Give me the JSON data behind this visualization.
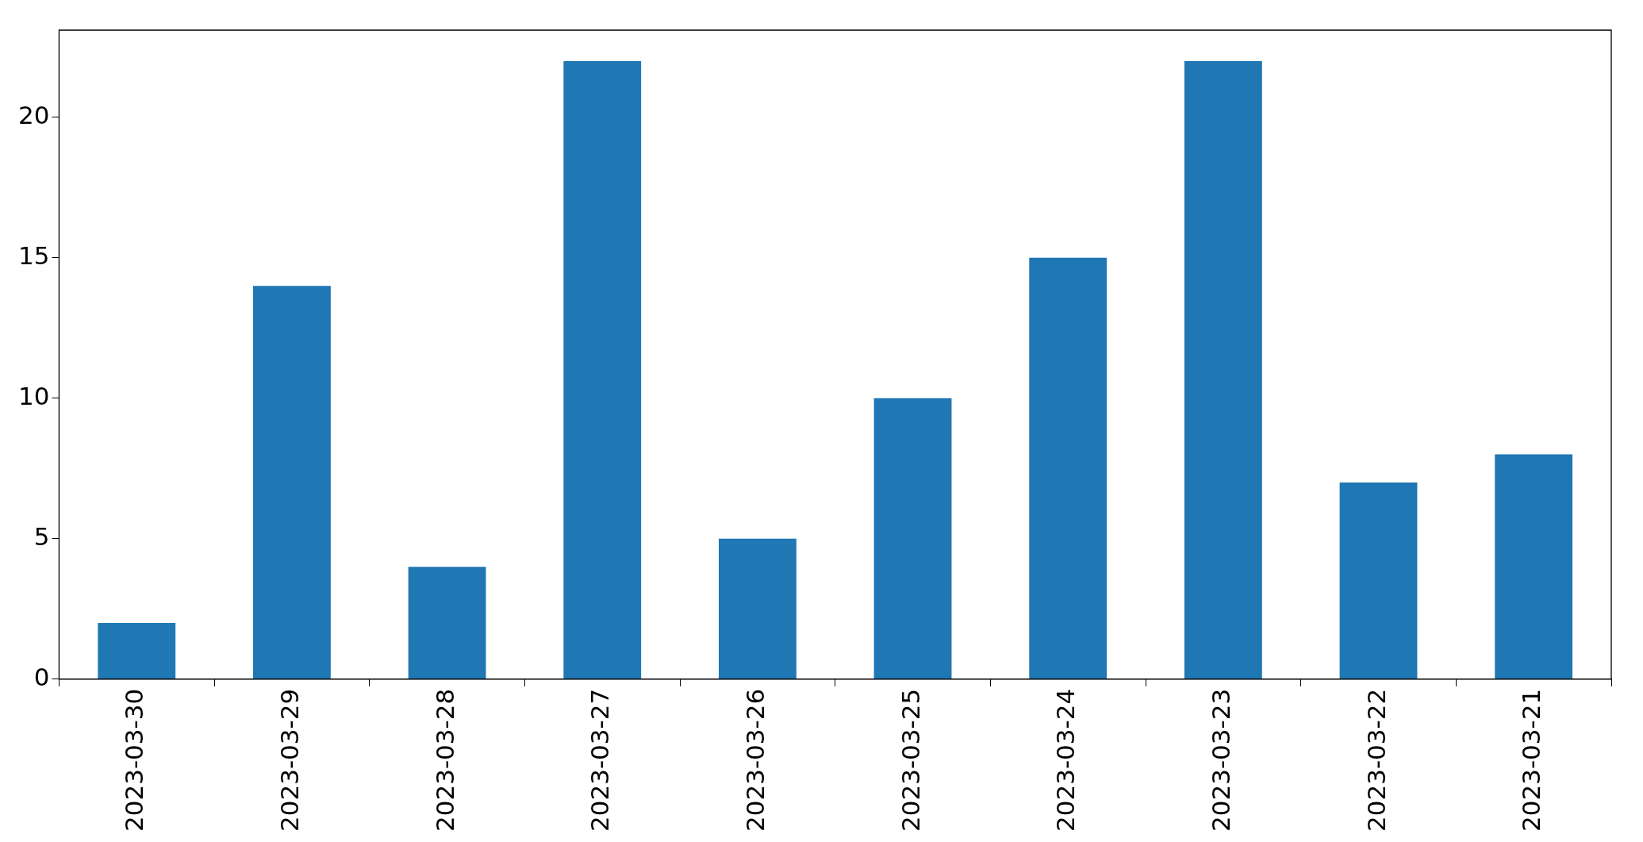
{
  "chart_data": {
    "type": "bar",
    "categories": [
      "2023-03-30",
      "2023-03-29",
      "2023-03-28",
      "2023-03-27",
      "2023-03-26",
      "2023-03-25",
      "2023-03-24",
      "2023-03-23",
      "2023-03-22",
      "2023-03-21"
    ],
    "values": [
      2,
      14,
      4,
      22,
      5,
      10,
      15,
      22,
      7,
      8
    ],
    "color": "#1f77b4",
    "ylim": [
      0,
      23.1
    ],
    "yticks": [
      0,
      5,
      10,
      15,
      20
    ]
  }
}
